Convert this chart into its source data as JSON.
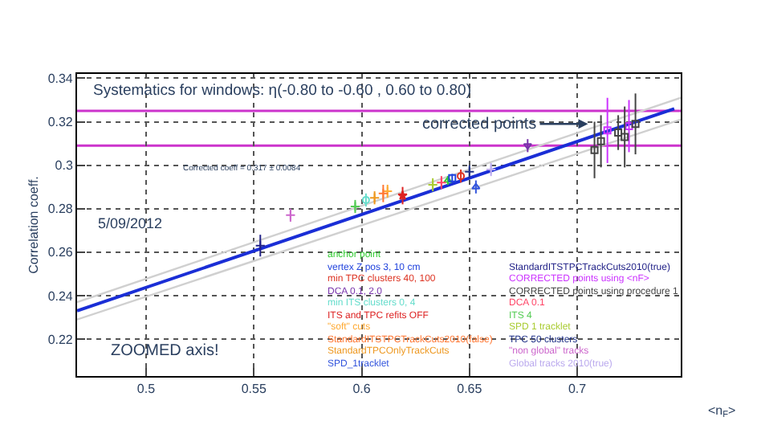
{
  "chart_data": {
    "type": "scatter",
    "title": "Systematics for windows: η(-0.80 to -0.60 , 0.60 to 0.80)",
    "xlabel": "<n$_{F}$>",
    "ylabel": "Correlation coeff.",
    "xlim": [
      0.468,
      0.748
    ],
    "ylim": [
      0.203,
      0.342
    ],
    "xticks": [
      0.5,
      0.55,
      0.6,
      0.65,
      0.7
    ],
    "yticks": [
      0.22,
      0.24,
      0.26,
      0.28,
      0.3,
      0.32,
      0.34
    ],
    "grid": true,
    "legend": "bottom right",
    "annotations": [
      "Corrected coeff = 0.317 ± 0.0084",
      "5/09/2012",
      "ZOOMED axis!",
      {
        "text": "corrected points",
        "x": 0.705,
        "y": 0.319
      }
    ],
    "ref_lines": [
      {
        "axis": "y",
        "value": 0.325,
        "color": "#cc33cc"
      },
      {
        "axis": "y",
        "value": 0.309,
        "color": "#cc33cc"
      }
    ],
    "series": [
      {
        "type": "line",
        "color": "#d0d0d0",
        "x": [
          0.468,
          0.748
        ],
        "values": [
          0.237,
          0.331
        ]
      },
      {
        "type": "line",
        "color": "#d0d0d0",
        "x": [
          0.468,
          0.748
        ],
        "values": [
          0.229,
          0.321
        ]
      },
      {
        "type": "line",
        "color": "#1a2ed6",
        "x": [
          0.468,
          0.745
        ],
        "values": [
          0.233,
          0.326
        ]
      },
      {
        "name": "anchor point",
        "color": "#33cc33",
        "marker": "triangle",
        "x": [
          0.64
        ],
        "values": [
          0.293
        ],
        "errors": [
          0.002
        ]
      },
      {
        "name": "vertex Z pos 3, 10 cm",
        "color": "#2244dd",
        "marker": "square",
        "x": [
          0.642
        ],
        "values": [
          0.294
        ],
        "errors": [
          0.002
        ]
      },
      {
        "name": "min TPC clusters 40, 100",
        "color": "#dd3322",
        "marker": "circle",
        "x": [
          0.646
        ],
        "values": [
          0.295
        ],
        "errors": [
          0.003
        ]
      },
      {
        "name": "DCA 0.1, 2.0",
        "color": "#7733aa",
        "marker": "triangle-down",
        "x": [
          0.677
        ],
        "values": [
          0.309
        ],
        "errors": [
          0.003
        ]
      },
      {
        "name": "min ITS clusters 0, 4",
        "color": "#66ddcc",
        "marker": "circle",
        "x": [
          0.602
        ],
        "values": [
          0.284
        ],
        "errors": [
          0.003
        ]
      },
      {
        "name": "ITS and TPC refits OFF",
        "color": "#dd2222",
        "marker": "star",
        "x": [
          0.619
        ],
        "values": [
          0.286
        ],
        "errors": [
          0.004
        ]
      },
      {
        "name": "\"soft\" cuts",
        "color": "#ffaa33",
        "marker": "cross",
        "x": [
          0.612
        ],
        "values": [
          0.288
        ],
        "errors": [
          0.003
        ]
      },
      {
        "name": "StandardITSTPCTrackCuts2010(false)",
        "color": "#ff7733",
        "marker": "cross",
        "x": [
          0.61
        ],
        "values": [
          0.287
        ],
        "errors": [
          0.004
        ]
      },
      {
        "name": "StandardTPCOnlyTrackCuts",
        "color": "#ee9922",
        "marker": "cross",
        "x": [
          0.606
        ],
        "values": [
          0.285
        ],
        "errors": [
          0.003
        ]
      },
      {
        "name": "SPD_1tracklet",
        "color": "#3355dd",
        "marker": "triangle",
        "x": [
          0.653
        ],
        "values": [
          0.29
        ],
        "errors": [
          0.003
        ]
      },
      {
        "name": "StandardITSTPCTrackCuts2010(true)",
        "color": "#222288",
        "marker": "cross",
        "x": [
          0.553
        ],
        "values": [
          0.263
        ],
        "errors": [
          0.005
        ]
      },
      {
        "name": "CORRECTED points using <nF>",
        "color": "#cc33ff",
        "marker": "square",
        "x": [
          0.714,
          0.724
        ],
        "values": [
          0.316,
          0.318
        ],
        "errors": [
          0.015,
          0.012
        ]
      },
      {
        "name": "CORRECTED points using procedure 1",
        "color": "#444444",
        "marker": "square",
        "x": [
          0.708,
          0.711,
          0.719,
          0.722,
          0.727
        ],
        "values": [
          0.307,
          0.311,
          0.315,
          0.313,
          0.319
        ],
        "errors": [
          0.013,
          0.012,
          0.008,
          0.014,
          0.014
        ]
      },
      {
        "name": "DCA 0.1",
        "color": "#ff4466",
        "marker": "cross",
        "x": [
          0.637
        ],
        "values": [
          0.292
        ],
        "errors": [
          0.003
        ]
      },
      {
        "name": "ITS 4",
        "color": "#55cc55",
        "marker": "cross",
        "x": [
          0.597
        ],
        "values": [
          0.281
        ],
        "errors": [
          0.003
        ]
      },
      {
        "name": "SPD 1 tracklet",
        "color": "#aacc33",
        "marker": "cross",
        "x": [
          0.633
        ],
        "values": [
          0.291
        ],
        "errors": [
          0.003
        ]
      },
      {
        "name": "TPC 50 clusters",
        "color": "#223388",
        "marker": "cross",
        "x": [
          0.65
        ],
        "values": [
          0.297
        ],
        "errors": [
          0.003
        ]
      },
      {
        "name": "\"non global\" tracks",
        "color": "#cc66cc",
        "marker": "cross",
        "x": [
          0.567
        ],
        "values": [
          0.277
        ],
        "errors": [
          0.003
        ]
      },
      {
        "name": "Global tracks 2010(true)",
        "color": "#bbaaee",
        "marker": "cross",
        "x": [
          0.66
        ],
        "values": [
          0.298
        ],
        "errors": [
          0.003
        ]
      }
    ]
  }
}
